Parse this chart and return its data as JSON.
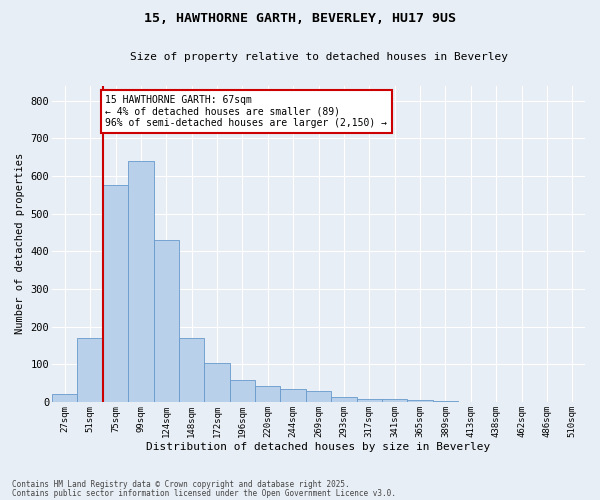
{
  "title_line1": "15, HAWTHORNE GARTH, BEVERLEY, HU17 9US",
  "title_line2": "Size of property relative to detached houses in Beverley",
  "xlabel": "Distribution of detached houses by size in Beverley",
  "ylabel": "Number of detached properties",
  "categories": [
    "27sqm",
    "51sqm",
    "75sqm",
    "99sqm",
    "124sqm",
    "148sqm",
    "172sqm",
    "196sqm",
    "220sqm",
    "244sqm",
    "269sqm",
    "293sqm",
    "317sqm",
    "341sqm",
    "365sqm",
    "389sqm",
    "413sqm",
    "438sqm",
    "462sqm",
    "486sqm",
    "510sqm"
  ],
  "values": [
    20,
    170,
    575,
    640,
    430,
    170,
    102,
    58,
    42,
    33,
    30,
    14,
    8,
    8,
    5,
    2,
    1,
    1,
    0,
    0,
    0
  ],
  "bar_color": "#b8d0ea",
  "bar_edge_color": "#6699cc",
  "vline_color": "#cc0000",
  "annotation_text": "15 HAWTHORNE GARTH: 67sqm\n← 4% of detached houses are smaller (89)\n96% of semi-detached houses are larger (2,150) →",
  "annotation_box_color": "#ffffff",
  "annotation_box_edge": "#cc0000",
  "background_color": "#e8eef5",
  "grid_color": "#ffffff",
  "ylim": [
    0,
    840
  ],
  "yticks": [
    0,
    100,
    200,
    300,
    400,
    500,
    600,
    700,
    800
  ],
  "footnote_line1": "Contains HM Land Registry data © Crown copyright and database right 2025.",
  "footnote_line2": "Contains public sector information licensed under the Open Government Licence v3.0."
}
